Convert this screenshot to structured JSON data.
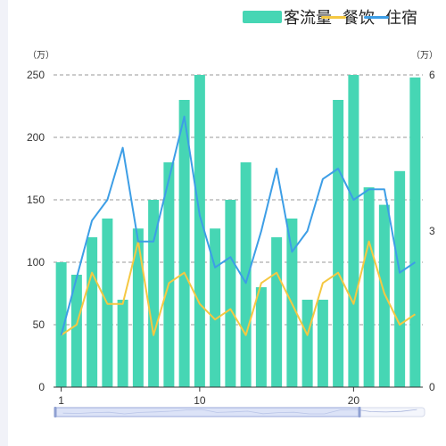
{
  "legend": [
    {
      "label": "客流量",
      "color": "#46d6b4",
      "kind": "bar"
    },
    {
      "label": "餐饮",
      "color": "#f5c842",
      "kind": "line"
    },
    {
      "label": "住宿",
      "color": "#3d9ee6",
      "kind": "line"
    }
  ],
  "left_unit": "（万）",
  "right_unit": "（万）",
  "chart_data": {
    "type": "bar",
    "x": [
      1,
      2,
      3,
      4,
      5,
      6,
      7,
      8,
      9,
      10,
      11,
      12,
      13,
      14,
      15,
      16,
      17,
      18,
      19,
      20,
      21,
      22,
      23,
      24
    ],
    "x_tick_labels": [
      "1",
      "10",
      "20"
    ],
    "x_tick_values": [
      1,
      10,
      20
    ],
    "series": [
      {
        "name": "客流量",
        "type": "bar",
        "axis": "left",
        "color": "#46d6b4",
        "values": [
          100,
          90,
          120,
          135,
          70,
          127,
          150,
          180,
          230,
          250,
          127,
          150,
          180,
          80,
          120,
          135,
          70,
          70,
          230,
          250,
          160,
          146,
          173,
          248
        ]
      },
      {
        "name": "餐饮",
        "type": "line",
        "axis": "right",
        "color": "#f5c842",
        "values": [
          1.0,
          1.2,
          2.2,
          1.6,
          1.6,
          2.8,
          1.0,
          2.0,
          2.2,
          1.6,
          1.3,
          1.5,
          1.0,
          2.0,
          2.2,
          1.6,
          1.0,
          2.0,
          2.2,
          1.6,
          2.8,
          1.8,
          1.2,
          1.4
        ]
      },
      {
        "name": "住宿",
        "type": "line",
        "axis": "right",
        "color": "#3d9ee6",
        "values": [
          1.0,
          2.1,
          3.2,
          3.6,
          4.6,
          2.8,
          2.8,
          4.0,
          5.2,
          3.3,
          2.3,
          2.5,
          2.0,
          3.0,
          4.2,
          2.6,
          3.0,
          4.0,
          4.2,
          3.6,
          3.8,
          3.8,
          2.2,
          2.4
        ]
      }
    ],
    "y_left": {
      "min": 0,
      "max": 250,
      "ticks": [
        0,
        50,
        100,
        150,
        200,
        250
      ],
      "unit": "（万）"
    },
    "y_right": {
      "min": 0,
      "max": 6,
      "ticks": [
        0,
        3,
        6
      ],
      "unit": "（万）"
    },
    "grid": true,
    "legend_position": "top-right",
    "data_zoom": {
      "range_start_category": 1,
      "range_end_category": 20
    }
  }
}
